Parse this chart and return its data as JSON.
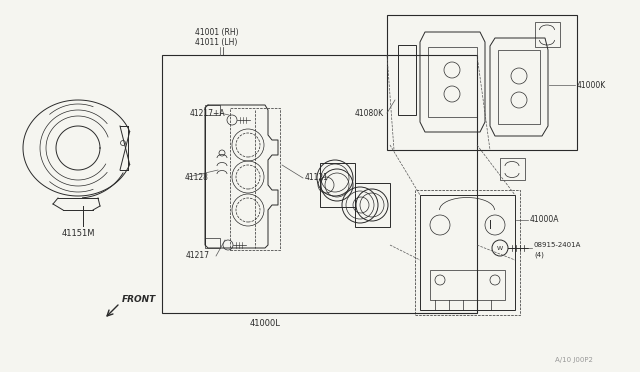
{
  "bg_color": "#f5f5f0",
  "line_color": "#2a2a2a",
  "dim_color": "#555555",
  "fig_width": 6.4,
  "fig_height": 3.72,
  "dpi": 100,
  "labels": {
    "41001_RH": "41001 (RH)",
    "41011_LH": "41011 (LH)",
    "41217A": "41217+A",
    "41128": "41128",
    "41217": "41217",
    "41121": "41121",
    "41000L": "41000L",
    "41080K": "41080K",
    "41000K": "41000K",
    "41000A": "41000A",
    "41151M": "41151M",
    "08915": "08915-2401A",
    "08915b": "(4)",
    "front_label": "FRONT"
  },
  "watermark": "A/10 J00P2"
}
